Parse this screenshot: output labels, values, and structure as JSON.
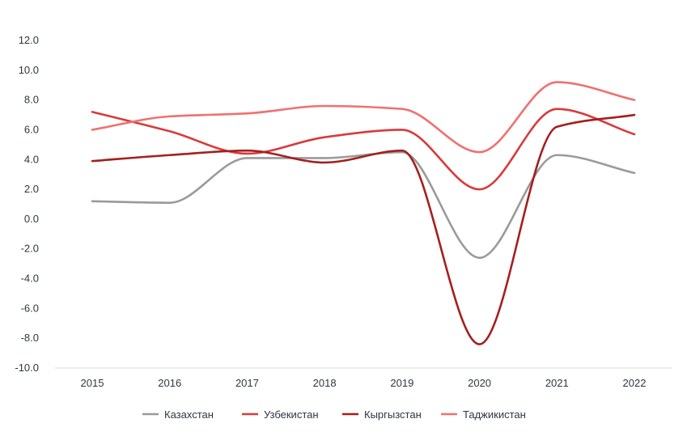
{
  "chart_data": {
    "type": "line",
    "title": "",
    "xlabel": "",
    "ylabel": "",
    "categories": [
      "2015",
      "2016",
      "2017",
      "2018",
      "2019",
      "2020",
      "2021",
      "2022"
    ],
    "ylim": [
      -10,
      12
    ],
    "yticks": [
      "12.0",
      "10.0",
      "8.0",
      "6.0",
      "4.0",
      "2.0",
      "0.0",
      "-2.0",
      "-4.0",
      "-6.0",
      "-8.0",
      "-10.0"
    ],
    "grid": false,
    "legend_position": "bottom",
    "series": [
      {
        "name": "Казахстан",
        "color": "#9a9a9a",
        "values": [
          1.2,
          1.1,
          4.1,
          4.1,
          4.5,
          -2.6,
          4.3,
          3.1
        ]
      },
      {
        "name": "Узбекистан",
        "color": "#d93a3a",
        "values": [
          7.2,
          5.9,
          4.4,
          5.5,
          6.0,
          2.0,
          7.4,
          5.7
        ]
      },
      {
        "name": "Кыргызстан",
        "color": "#a51f1f",
        "values": [
          3.9,
          4.3,
          4.6,
          3.8,
          4.6,
          -8.4,
          6.2,
          7.0
        ]
      },
      {
        "name": "Таджикистан",
        "color": "#f07070",
        "values": [
          6.0,
          6.9,
          7.1,
          7.6,
          7.4,
          4.5,
          9.2,
          8.0
        ]
      }
    ]
  }
}
